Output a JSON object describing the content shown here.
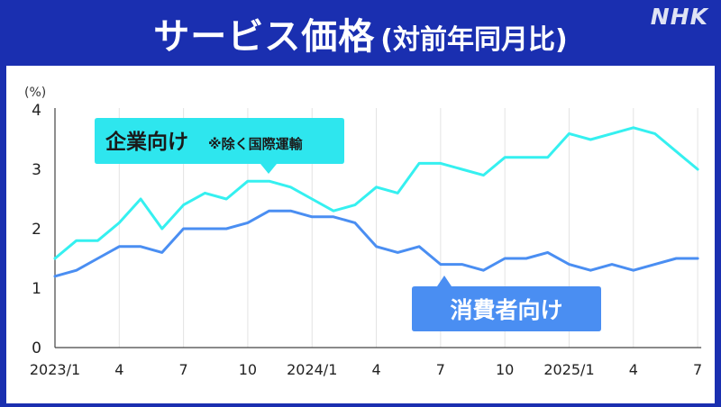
{
  "header": {
    "title": "サービス価格",
    "subtitle": "(対前年同月比)",
    "logo": "NHK"
  },
  "colors": {
    "background": "#1a2fb0",
    "corporate": "#35f0f0",
    "consumer": "#4a8ef2",
    "corporate_label_bg": "#2ee6ee",
    "consumer_label_bg": "#4a8ef2"
  },
  "chart_data": {
    "type": "line",
    "title": "サービス価格(対前年同月比)",
    "ylabel": "(%)",
    "xlabel": "",
    "ylim": [
      0,
      4
    ],
    "yticks": [
      "0",
      "1",
      "2",
      "3",
      "4"
    ],
    "xtick_labels": [
      "2023/1",
      "4",
      "7",
      "10",
      "2024/1",
      "4",
      "7",
      "10",
      "2025/1",
      "4",
      "7"
    ],
    "grid": "vertical",
    "x": [
      "2023/1",
      "2023/2",
      "2023/3",
      "2023/4",
      "2023/5",
      "2023/6",
      "2023/7",
      "2023/8",
      "2023/9",
      "2023/10",
      "2023/11",
      "2023/12",
      "2024/1",
      "2024/2",
      "2024/3",
      "2024/4",
      "2024/5",
      "2024/6",
      "2024/7",
      "2024/8",
      "2024/9",
      "2024/10",
      "2024/11",
      "2024/12",
      "2025/1",
      "2025/2",
      "2025/3",
      "2025/4",
      "2025/5",
      "2025/6",
      "2025/7"
    ],
    "series": [
      {
        "name": "企業向け",
        "note": "※除く国際運輸",
        "values": [
          1.5,
          1.8,
          1.8,
          2.1,
          2.5,
          2.0,
          2.4,
          2.6,
          2.5,
          2.8,
          2.8,
          2.7,
          2.5,
          2.3,
          2.4,
          2.7,
          2.6,
          3.1,
          3.1,
          3.0,
          2.9,
          3.2,
          3.2,
          3.2,
          3.6,
          3.5,
          3.6,
          3.7,
          3.6,
          3.3,
          3.0
        ]
      },
      {
        "name": "消費者向け",
        "values": [
          1.2,
          1.3,
          1.5,
          1.7,
          1.7,
          1.6,
          2.0,
          2.0,
          2.0,
          2.1,
          2.3,
          2.3,
          2.2,
          2.2,
          2.1,
          1.7,
          1.6,
          1.7,
          1.4,
          1.4,
          1.3,
          1.5,
          1.5,
          1.6,
          1.4,
          1.3,
          1.4,
          1.3,
          1.4,
          1.5,
          1.5
        ]
      }
    ]
  }
}
